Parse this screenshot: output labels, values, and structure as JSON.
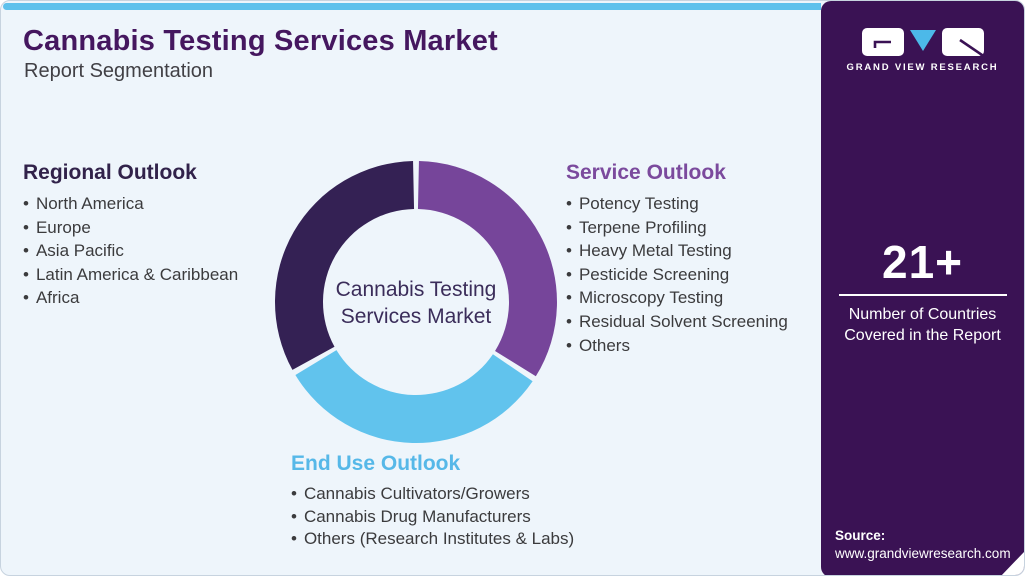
{
  "header": {
    "title": "Cannabis Testing Services Market",
    "subtitle": "Report Segmentation"
  },
  "ui": {
    "bullet": "•"
  },
  "sections": {
    "regional": {
      "heading": "Regional Outlook",
      "items": [
        "North America",
        "Europe",
        "Asia Pacific",
        "Latin America & Caribbean",
        "Africa"
      ]
    },
    "service": {
      "heading": "Service Outlook",
      "items": [
        "Potency Testing",
        "Terpene Profiling",
        "Heavy Metal Testing",
        "Pesticide Screening",
        "Microscopy Testing",
        "Residual Solvent Screening",
        "Others"
      ]
    },
    "end_use": {
      "heading": "End Use Outlook",
      "items": [
        "Cannabis Cultivators/Growers",
        "Cannabis Drug Manufacturers",
        "Others (Research Institutes & Labs)"
      ]
    }
  },
  "donut": {
    "center_label_line1": "Cannabis Testing",
    "center_label_line2": "Services Market",
    "outer_radius": 141,
    "inner_radius": 93,
    "segments": [
      {
        "name": "service-outlook",
        "color": "#76459a",
        "start_angle": 1.2,
        "end_angle": 121.8
      },
      {
        "name": "end-use-outlook",
        "color": "#61c3ed",
        "start_angle": 124.2,
        "end_angle": 238.8
      },
      {
        "name": "regional-outlook",
        "color": "#342154",
        "start_angle": 241.2,
        "end_angle": 358.8
      }
    ]
  },
  "chart_data": {
    "type": "pie",
    "subtype": "donut",
    "title": "Cannabis Testing Services Market",
    "categories": [
      "Service Outlook",
      "End Use Outlook",
      "Regional Outlook"
    ],
    "values": [
      33.3,
      33.3,
      33.3
    ],
    "colors": [
      "#76459a",
      "#61c3ed",
      "#342154"
    ],
    "center_label": "Cannabis Testing Services Market",
    "legend_position": "none"
  },
  "sidebar": {
    "logo_text": "GRAND VIEW RESEARCH",
    "stat_value": "21+",
    "stat_label_line1": "Number of Countries",
    "stat_label_line2": "Covered in the Report",
    "source_label": "Source:",
    "source_url": "www.grandviewresearch.com"
  },
  "colors": {
    "topbar": "#5ec1ec",
    "card_bg": "#eef5fb",
    "card_border": "#c7d3df",
    "title": "#45175f",
    "subtitle_text": "#414045",
    "regional_heading": "#31224a",
    "service_heading": "#7b4a9d",
    "end_use_heading": "#56b8e8",
    "list_text": "#3b3b3d",
    "sidebar_bg": "#3a1254",
    "donut_dark": "#342154",
    "donut_purple": "#76459a",
    "donut_blue": "#61c3ed",
    "logo_triangle_blue": "#4cb9e9"
  }
}
